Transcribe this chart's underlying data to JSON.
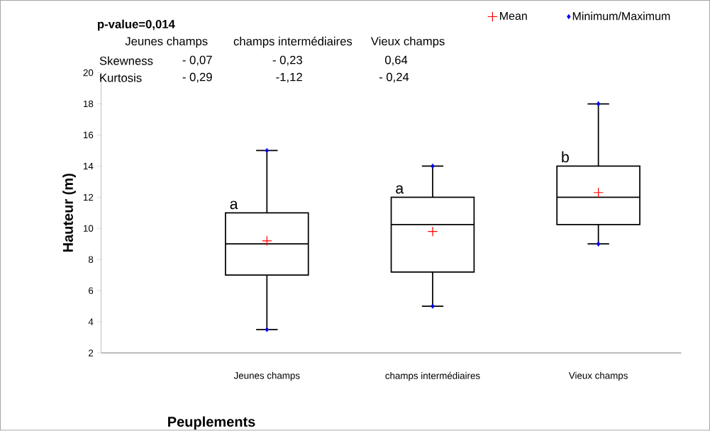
{
  "chart_data": {
    "type": "box",
    "ylabel": "Hauteur (m)",
    "xlabel": "Peuplements",
    "categories": [
      "Jeunes champs",
      "champs intermédiaires",
      "Vieux champs"
    ],
    "boxes": [
      {
        "low": 3.5,
        "q1": 7,
        "median": 9,
        "q3": 11,
        "high": 15
      },
      {
        "low": 5,
        "q1": 7.2,
        "median": 10.25,
        "q3": 12,
        "high": 14
      },
      {
        "low": 9,
        "q1": 10.25,
        "median": 12,
        "q3": 14,
        "high": 18
      }
    ],
    "series": [
      {
        "name": "Mean",
        "type": "scatter",
        "color": "#ff0000",
        "marker": "cross",
        "values": [
          9.2,
          9.8,
          12.3
        ]
      },
      {
        "name": "Minimum/Maximum",
        "type": "scatter",
        "color": "#0000ff",
        "marker": "diamond",
        "x": [
          "Jeunes champs",
          "Jeunes champs",
          "champs intermédiaires",
          "champs intermédiaires",
          "Vieux champs",
          "Vieux champs"
        ],
        "values": [
          3.5,
          15,
          5,
          14,
          9,
          18
        ]
      }
    ],
    "ylim": [
      2,
      20
    ],
    "yticks": [
      2,
      4,
      6,
      8,
      10,
      12,
      14,
      16,
      18,
      20
    ],
    "legend": "top right",
    "grid": false,
    "annotations": [
      "p-value=0,014",
      "Jeunes champs",
      "champs intermédiaires",
      "Vieux champs",
      "Skewness",
      "- 0,07",
      "- 0,23",
      "0,64",
      "Kurtosis",
      "- 0,29",
      "-1,12",
      "- 0,24",
      "a",
      "a",
      "b"
    ]
  }
}
